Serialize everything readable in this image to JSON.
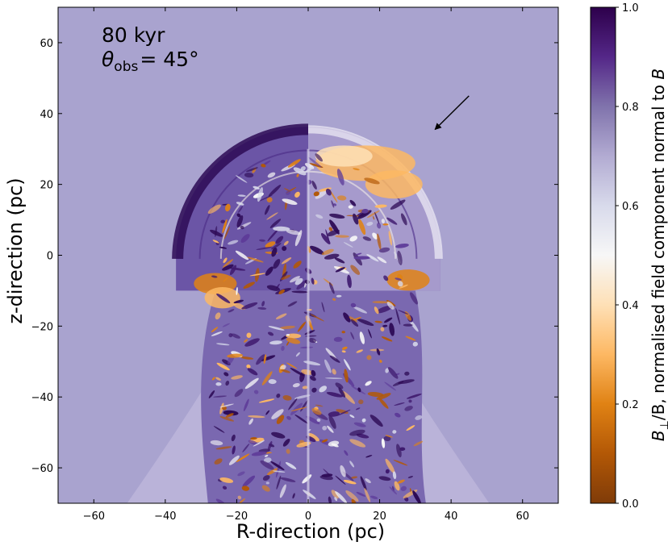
{
  "chart_data": {
    "type": "heatmap",
    "annotation": {
      "time": "80 kyr",
      "angle_symbol": "θ",
      "angle_subscript": "obs",
      "angle_value": "= 45°"
    },
    "xlabel": "R-direction (pc)",
    "ylabel": "z-direction (pc)",
    "xlim": [
      -70,
      70
    ],
    "ylim": [
      -70,
      70
    ],
    "xticks": [
      -60,
      -40,
      -20,
      0,
      20,
      40,
      60
    ],
    "yticks": [
      -60,
      -40,
      -20,
      0,
      20,
      40,
      60
    ],
    "colorbar": {
      "label": "B⊥/B, normalised field component normal to B",
      "label_parts": {
        "main": "B",
        "sub": "⊥",
        "slash": "/B, normalised field component normal to ",
        "vec": "B"
      },
      "range": [
        0.0,
        1.0
      ],
      "ticks": [
        0.0,
        0.2,
        0.4,
        0.6,
        0.8,
        1.0
      ],
      "colormap": "PuOr",
      "background_value": 0.72
    },
    "arrow": {
      "from": [
        45,
        45
      ],
      "to": [
        35.5,
        35.5
      ]
    },
    "structure": {
      "shell_top_z": 36,
      "shell_radius": 37,
      "shell_center_z": -1,
      "tail_bottom_z": -70,
      "bow_base_half_width": 51
    }
  },
  "colors": {
    "background": "#a9a3cf",
    "dark_purple": "#2d0a55",
    "mid_purple": "#5e3c99",
    "light_lavender": "#d8daeb",
    "white": "#f7f7f7",
    "light_orange": "#fdb863",
    "orange": "#e08214",
    "dark_orange": "#b35806"
  }
}
